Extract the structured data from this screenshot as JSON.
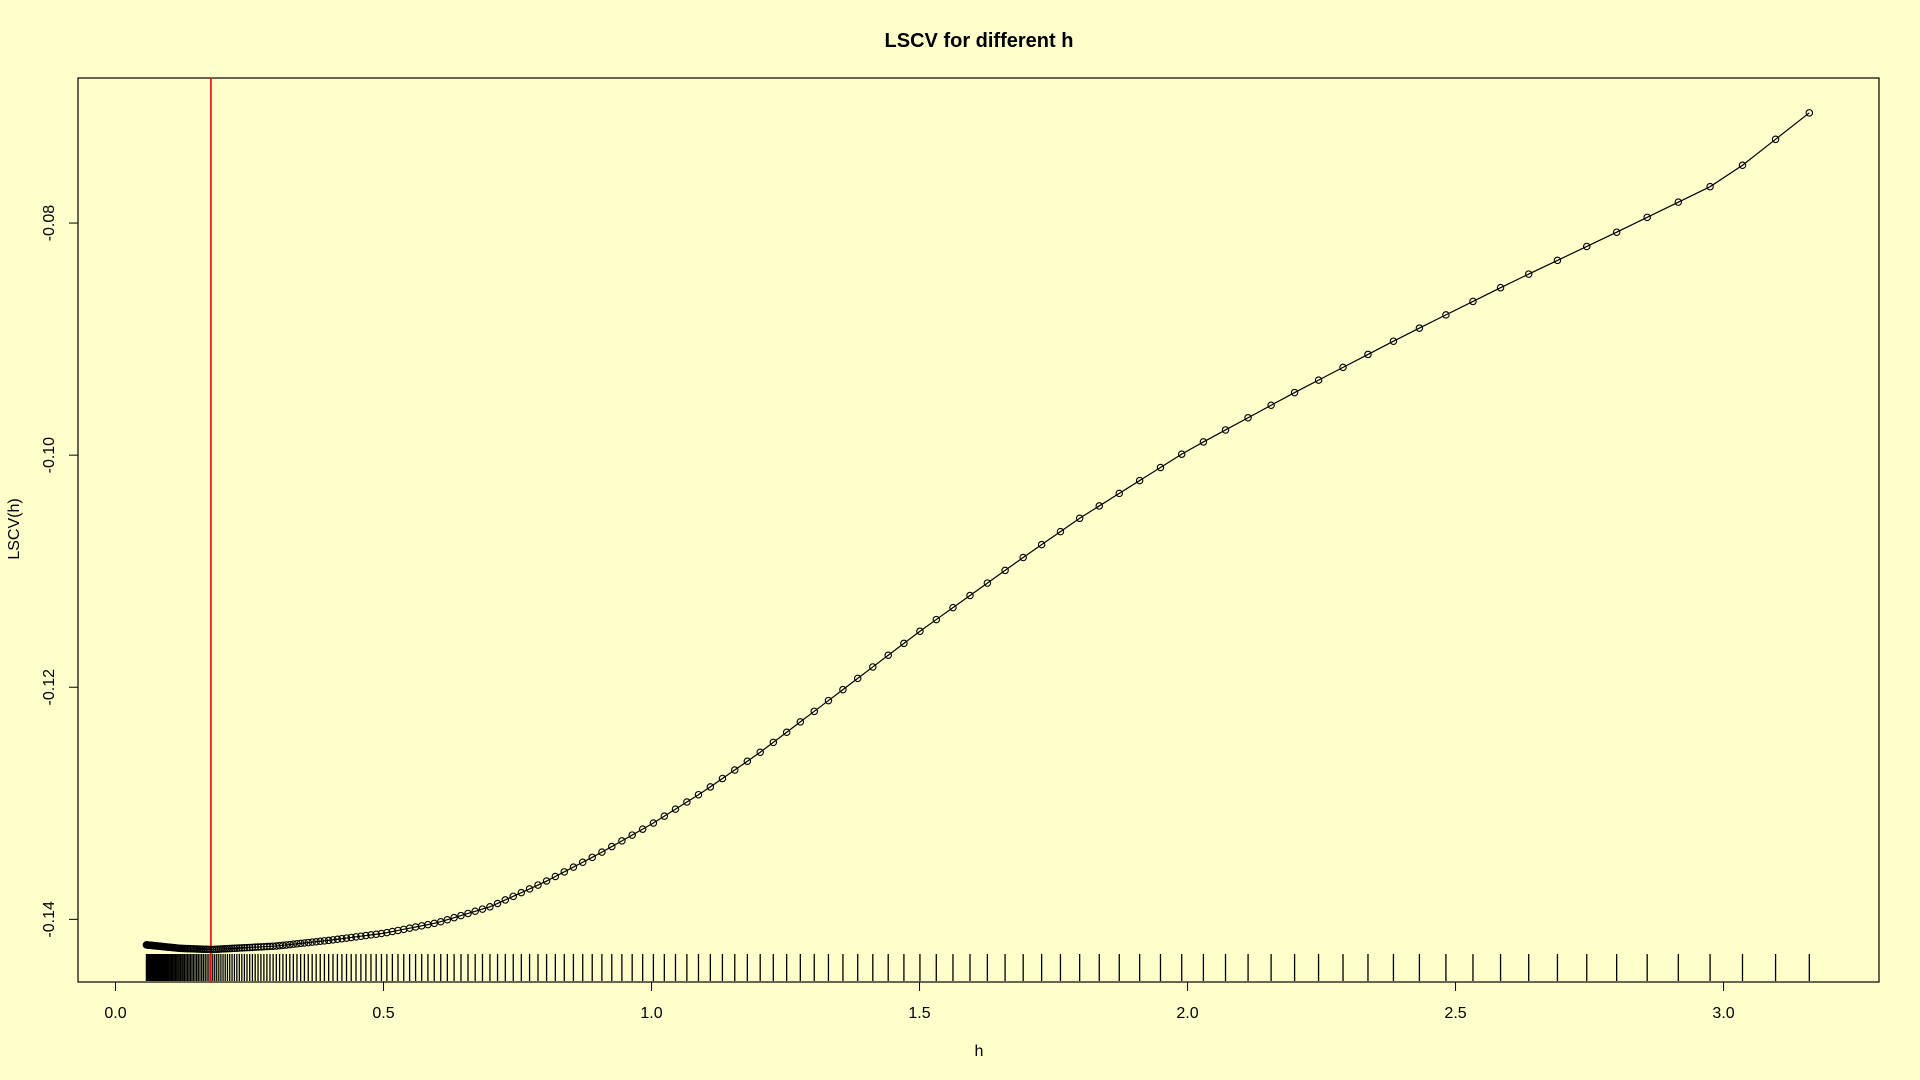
{
  "chart_data": {
    "type": "scatter",
    "title": "LSCV for different h",
    "xlabel": "h",
    "ylabel": "LSCV(h)",
    "xlim": [
      -0.07,
      3.29
    ],
    "ylim": [
      -0.1454,
      -0.0675
    ],
    "x_ticks": [
      0.0,
      0.5,
      1.0,
      1.5,
      2.0,
      2.5,
      3.0
    ],
    "x_tick_labels": [
      "0.0",
      "0.5",
      "1.0",
      "1.5",
      "2.0",
      "2.5",
      "3.0"
    ],
    "y_ticks": [
      -0.14,
      -0.12,
      -0.1,
      -0.08
    ],
    "y_tick_labels": [
      "-0.14",
      "-0.12",
      "-0.10",
      "-0.08"
    ],
    "series": [
      {
        "style": "points-and-line",
        "h_range": [
          0.0576,
          3.16
        ],
        "log_spacing": true,
        "n_points": 200,
        "key_points": [
          {
            "h": 0.0576,
            "lscv": -0.1422
          },
          {
            "h": 0.12,
            "lscv": -0.1425
          },
          {
            "h": 0.18,
            "lscv": -0.1426
          },
          {
            "h": 0.3,
            "lscv": -0.1423
          },
          {
            "h": 0.4,
            "lscv": -0.1418
          },
          {
            "h": 0.5,
            "lscv": -0.1412
          },
          {
            "h": 0.6,
            "lscv": -0.1403
          },
          {
            "h": 0.7,
            "lscv": -0.1389
          },
          {
            "h": 0.8,
            "lscv": -0.1368
          },
          {
            "h": 0.9,
            "lscv": -0.1344
          },
          {
            "h": 1.0,
            "lscv": -0.1318
          },
          {
            "h": 1.1,
            "lscv": -0.1289
          },
          {
            "h": 1.2,
            "lscv": -0.1257
          },
          {
            "h": 1.3,
            "lscv": -0.1222
          },
          {
            "h": 1.4,
            "lscv": -0.1187
          },
          {
            "h": 1.5,
            "lscv": -0.1152
          },
          {
            "h": 1.6,
            "lscv": -0.1119
          },
          {
            "h": 1.7,
            "lscv": -0.1086
          },
          {
            "h": 1.8,
            "lscv": -0.1054
          },
          {
            "h": 1.9,
            "lscv": -0.1025
          },
          {
            "h": 2.0,
            "lscv": -0.0996
          },
          {
            "h": 2.2,
            "lscv": -0.0946
          },
          {
            "h": 2.4,
            "lscv": -0.0898
          },
          {
            "h": 2.6,
            "lscv": -0.0852
          },
          {
            "h": 2.8,
            "lscv": -0.0808
          },
          {
            "h": 3.0,
            "lscv": -0.0763
          },
          {
            "h": 3.16,
            "lscv": -0.0705
          }
        ]
      }
    ],
    "vline": {
      "x": 0.178,
      "color": "#ff0000"
    },
    "rug": true,
    "grid": false,
    "colors": {
      "background": "#ffffcc",
      "points": "#000000",
      "line": "#000000",
      "vline": "#ff0000"
    }
  }
}
